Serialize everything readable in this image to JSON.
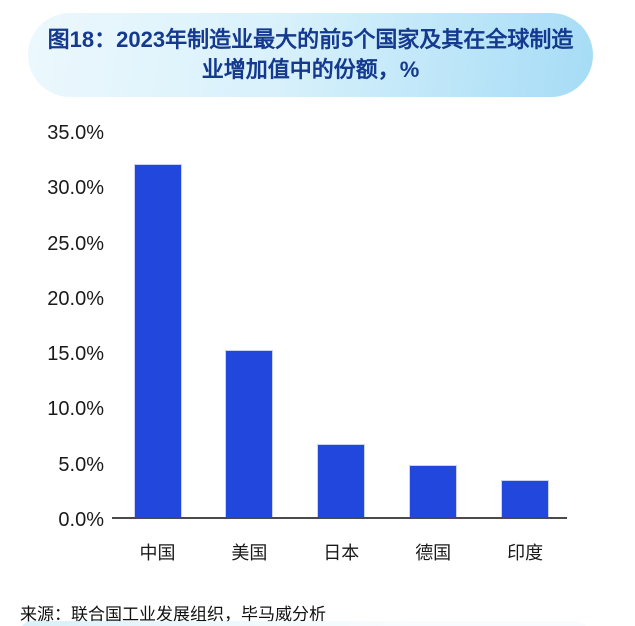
{
  "header": {
    "title_line1": "图18：2023年制造业最大的前5个国家及其在全球制造",
    "title_line2": "业增加值中的份额，%"
  },
  "chart_data": {
    "type": "bar",
    "title": "图18：2023年制造业最大的前5个国家及其在全球制造业增加值中的份额，%",
    "categories": [
      "中国",
      "美国",
      "日本",
      "德国",
      "印度"
    ],
    "values": [
      32.0,
      15.2,
      6.7,
      4.8,
      3.4
    ],
    "xlabel": "",
    "ylabel": "",
    "ylim": [
      0,
      35
    ],
    "ytick_step": 5,
    "ytick_labels": [
      "0.0%",
      "5.0%",
      "10.0%",
      "15.0%",
      "20.0%",
      "25.0%",
      "30.0%",
      "35.0%"
    ],
    "grid": false,
    "legend": null,
    "bar_color": "#2247DC"
  },
  "source": {
    "text": "来源：联合国工业发展组织，毕马威分析"
  },
  "colors": {
    "title_text": "#14398F",
    "header_gradient_start": "#ECF8FD",
    "header_gradient_end": "#A6DCF6",
    "bar": "#2247DC",
    "axis_line": "#4A4A4A",
    "tick_text": "#1A1A1A"
  }
}
